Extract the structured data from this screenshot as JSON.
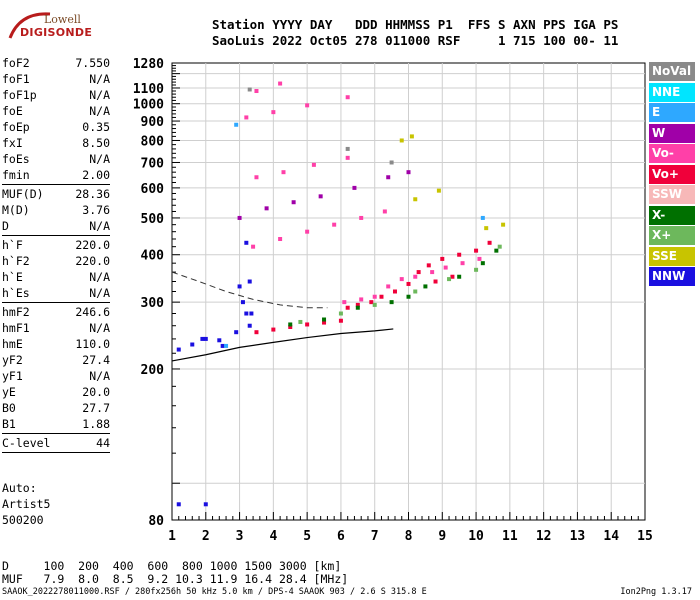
{
  "logo": {
    "line1": "Lowell",
    "line2": "DIGISONDE"
  },
  "header": {
    "line1": "Station YYYY DAY   DDD HHMMSS P1  FFS S AXN PPS IGA PS",
    "line2": "SaoLuis 2022 Oct05 278 011000 RSF     1 715 100 00- 11"
  },
  "params": [
    {
      "name": "foF2",
      "value": "7.550"
    },
    {
      "name": "foF1",
      "value": "N/A"
    },
    {
      "name": "foF1p",
      "value": "N/A"
    },
    {
      "name": "foE",
      "value": "N/A"
    },
    {
      "name": "foEp",
      "value": "0.35"
    },
    {
      "name": "fxI",
      "value": "8.50"
    },
    {
      "name": "foEs",
      "value": "N/A"
    },
    {
      "name": "fmin",
      "value": "2.00",
      "sep": true
    },
    {
      "name": "MUF(D)",
      "value": "28.36"
    },
    {
      "name": "M(D)",
      "value": "3.76"
    },
    {
      "name": "D",
      "value": "N/A",
      "sep": true
    },
    {
      "name": "h`F",
      "value": "220.0"
    },
    {
      "name": "h`F2",
      "value": "220.0"
    },
    {
      "name": "h`E",
      "value": "N/A"
    },
    {
      "name": "h`Es",
      "value": "N/A",
      "sep": true
    },
    {
      "name": "hmF2",
      "value": "246.6"
    },
    {
      "name": "hmF1",
      "value": "N/A"
    },
    {
      "name": "hmE",
      "value": "110.0"
    },
    {
      "name": "yF2",
      "value": "27.4"
    },
    {
      "name": "yF1",
      "value": "N/A"
    },
    {
      "name": "yE",
      "value": "20.0"
    },
    {
      "name": "B0",
      "value": "27.7"
    },
    {
      "name": "B1",
      "value": "1.88",
      "sep": true
    },
    {
      "name": "C-level",
      "value": "44",
      "sep": true
    }
  ],
  "auto": [
    "Auto:",
    "Artist5",
    "500200"
  ],
  "legend": [
    {
      "label": "NoVal",
      "color": "#8a8a8a"
    },
    {
      "label": "NNE",
      "color": "#00e5ff"
    },
    {
      "label": "E",
      "color": "#2ea8ff"
    },
    {
      "label": "W",
      "color": "#a000a8"
    },
    {
      "label": "Vo-",
      "color": "#ff40a8"
    },
    {
      "label": "Vo+",
      "color": "#f0003a"
    },
    {
      "label": "SSW",
      "color": "#f7b8b8"
    },
    {
      "label": "X-",
      "color": "#007000"
    },
    {
      "label": "X+",
      "color": "#6db85c"
    },
    {
      "label": "SSE",
      "color": "#c8c400"
    },
    {
      "label": "NNW",
      "color": "#1a0fe0"
    }
  ],
  "chart_data": {
    "type": "scatter",
    "title": "",
    "xlabel": "",
    "ylabel": "",
    "xlim": [
      1,
      15
    ],
    "ylim": [
      80,
      1280
    ],
    "y_scale": "log",
    "x_ticks": [
      "1",
      "2",
      "3",
      "4",
      "5",
      "6",
      "7",
      "8",
      "9",
      "10",
      "11",
      "12",
      "13",
      "14",
      "15"
    ],
    "y_ticks": [
      "80",
      "200",
      "300",
      "400",
      "500",
      "600",
      "700",
      "800",
      "900",
      "1000",
      "1100",
      "1280"
    ],
    "grid": true,
    "series": [
      {
        "color": "#1a0fe0",
        "points": [
          [
            1.2,
            225
          ],
          [
            1.6,
            232
          ],
          [
            2.0,
            240
          ],
          [
            2.4,
            238
          ],
          [
            2.9,
            250
          ],
          [
            3.1,
            300
          ],
          [
            3.2,
            280
          ],
          [
            3.3,
            260
          ],
          [
            3.0,
            330
          ],
          [
            2.5,
            230
          ],
          [
            1.9,
            240
          ],
          [
            3.3,
            340
          ],
          [
            3.35,
            280
          ],
          [
            1.2,
            88
          ],
          [
            2.0,
            88
          ],
          [
            3.2,
            430
          ]
        ]
      },
      {
        "color": "#f0003a",
        "points": [
          [
            6.2,
            290
          ],
          [
            6.5,
            295
          ],
          [
            6.9,
            300
          ],
          [
            7.2,
            310
          ],
          [
            7.6,
            320
          ],
          [
            8.0,
            335
          ],
          [
            8.3,
            360
          ],
          [
            8.6,
            375
          ],
          [
            9.0,
            390
          ],
          [
            9.5,
            400
          ],
          [
            10.0,
            410
          ],
          [
            10.4,
            430
          ],
          [
            6.0,
            268
          ],
          [
            5.5,
            265
          ],
          [
            5.0,
            262
          ],
          [
            4.5,
            258
          ],
          [
            4.0,
            254
          ],
          [
            3.5,
            250
          ],
          [
            8.8,
            340
          ],
          [
            9.3,
            350
          ]
        ]
      },
      {
        "color": "#ff40a8",
        "points": [
          [
            6.1,
            300
          ],
          [
            6.6,
            305
          ],
          [
            7.0,
            310
          ],
          [
            7.4,
            330
          ],
          [
            7.8,
            345
          ],
          [
            8.2,
            350
          ],
          [
            8.7,
            360
          ],
          [
            9.1,
            370
          ],
          [
            9.6,
            380
          ],
          [
            10.1,
            390
          ],
          [
            3.4,
            420
          ],
          [
            4.2,
            440
          ],
          [
            5.0,
            460
          ],
          [
            5.8,
            480
          ],
          [
            6.6,
            500
          ],
          [
            7.3,
            520
          ],
          [
            3.5,
            640
          ],
          [
            4.3,
            660
          ],
          [
            5.2,
            690
          ],
          [
            6.2,
            720
          ],
          [
            3.2,
            920
          ],
          [
            4.0,
            950
          ],
          [
            5.0,
            990
          ],
          [
            6.2,
            1040
          ],
          [
            3.5,
            1080
          ],
          [
            4.2,
            1130
          ]
        ]
      },
      {
        "color": "#007000",
        "points": [
          [
            4.5,
            262
          ],
          [
            5.5,
            270
          ],
          [
            6.5,
            290
          ],
          [
            7.5,
            300
          ],
          [
            8.5,
            330
          ],
          [
            9.5,
            350
          ],
          [
            10.2,
            380
          ],
          [
            10.6,
            410
          ],
          [
            8.0,
            310
          ]
        ]
      },
      {
        "color": "#6db85c",
        "points": [
          [
            4.8,
            266
          ],
          [
            6.0,
            280
          ],
          [
            7.0,
            295
          ],
          [
            8.2,
            320
          ],
          [
            9.2,
            345
          ],
          [
            10.0,
            365
          ],
          [
            10.7,
            420
          ]
        ]
      },
      {
        "color": "#c8c400",
        "points": [
          [
            8.2,
            560
          ],
          [
            8.9,
            590
          ],
          [
            7.8,
            800
          ],
          [
            8.1,
            820
          ],
          [
            10.3,
            470
          ],
          [
            10.8,
            480
          ]
        ]
      },
      {
        "color": "#a000a8",
        "points": [
          [
            3.0,
            500
          ],
          [
            3.8,
            530
          ],
          [
            4.6,
            550
          ],
          [
            5.4,
            570
          ],
          [
            6.4,
            600
          ],
          [
            7.4,
            640
          ],
          [
            8.0,
            660
          ]
        ]
      },
      {
        "color": "#2ea8ff",
        "points": [
          [
            2.6,
            230
          ],
          [
            2.9,
            880
          ],
          [
            10.2,
            500
          ]
        ]
      },
      {
        "color": "#8a8a8a",
        "points": [
          [
            3.3,
            1090
          ],
          [
            6.2,
            760
          ],
          [
            7.5,
            700
          ]
        ]
      }
    ],
    "trace_curve": {
      "x": [
        1.0,
        2.0,
        3.0,
        4.0,
        5.0,
        6.0,
        7.0,
        7.55
      ],
      "y": [
        210,
        218,
        228,
        235,
        242,
        248,
        252,
        255
      ]
    },
    "profile_curve": {
      "x": [
        1.0,
        1.8,
        2.6,
        3.4,
        4.2,
        5.0,
        5.6
      ],
      "y": [
        360,
        340,
        320,
        305,
        295,
        290,
        290
      ]
    }
  },
  "bottom": {
    "d_row": "D     100  200  400  600  800 1000 1500 3000 [km]",
    "muf_row": "MUF   7.9  8.0  8.5  9.2 10.3 11.9 16.4 28.4 [MHz]",
    "footer": "SAAOK_2022278011000.RSF / 280fx256h 50 kHz 5.0 km / DPS-4 SAAOK 903 / 2.6 S 315.8 E",
    "version": "Ion2Png 1.3.17"
  }
}
